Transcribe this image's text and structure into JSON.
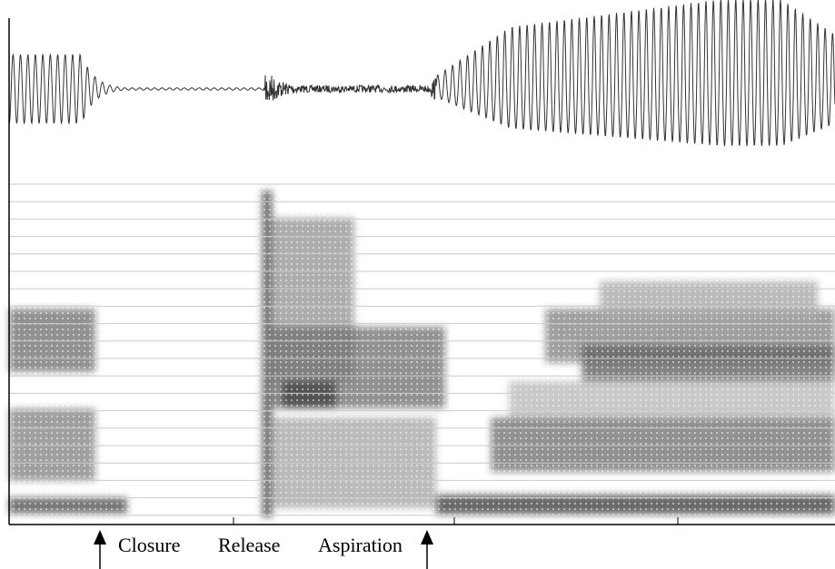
{
  "labels": {
    "closure": "Closure",
    "release": "Release",
    "aspiration": "Aspiration"
  }
}
